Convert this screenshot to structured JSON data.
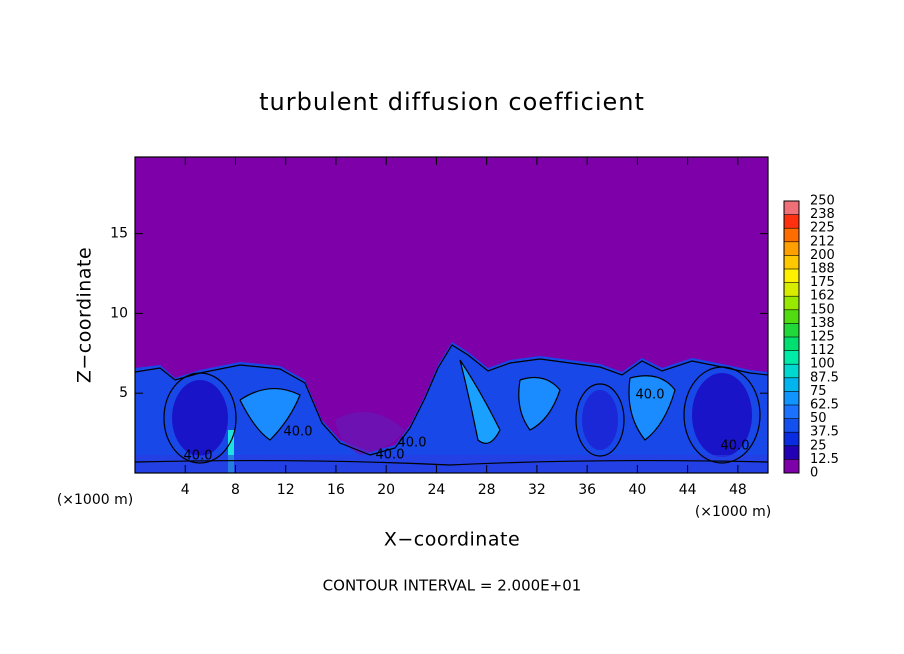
{
  "chart_data": {
    "type": "contour",
    "title": "turbulent diffusion coefficient",
    "xlabel": "X−coordinate",
    "ylabel": "Z−coordinate",
    "x_unit": "(×1000 m)",
    "y_unit": "(×1000 m)",
    "annotation": "CONTOUR INTERVAL = 2.000E+01",
    "xlim": [
      0,
      50.4
    ],
    "xticks": [
      4,
      8,
      12,
      16,
      20,
      24,
      28,
      32,
      36,
      40,
      44,
      48
    ],
    "ylim": [
      0,
      19.8
    ],
    "yticks": [
      5,
      10,
      15
    ],
    "contour_labels": [
      {
        "value": 40,
        "label": "40.0"
      },
      {
        "value": 40,
        "label": "40.0"
      },
      {
        "value": 40,
        "label": "40.0"
      },
      {
        "value": 40,
        "label": "40.0"
      },
      {
        "value": 40,
        "label": "40.0"
      },
      {
        "value": 40,
        "label": "40.0"
      }
    ],
    "colorbar": {
      "ticks": [
        0,
        12.5,
        25,
        37.5,
        50,
        62.5,
        75,
        87.5,
        100,
        {
          "value": 112.5,
          "label": "112"
        },
        125,
        {
          "value": 137.5,
          "label": "138"
        },
        150,
        {
          "value": 162.5,
          "label": "162"
        },
        175,
        {
          "value": 187.5,
          "label": "188"
        },
        200,
        {
          "value": 212.5,
          "label": "212"
        },
        225,
        {
          "value": 237.5,
          "label": "238"
        },
        250
      ],
      "colors": [
        "#7d00a8",
        "#2200b4",
        "#0a2ce0",
        "#1450f0",
        "#1a72ff",
        "#1094ff",
        "#00b4f0",
        "#00d8d0",
        "#00eaa8",
        "#00e070",
        "#20d838",
        "#50dc10",
        "#98e800",
        "#d8ec00",
        "#fff000",
        "#ffc800",
        "#ffa000",
        "#ff6c00",
        "#ff3010",
        "#f07078"
      ]
    }
  }
}
